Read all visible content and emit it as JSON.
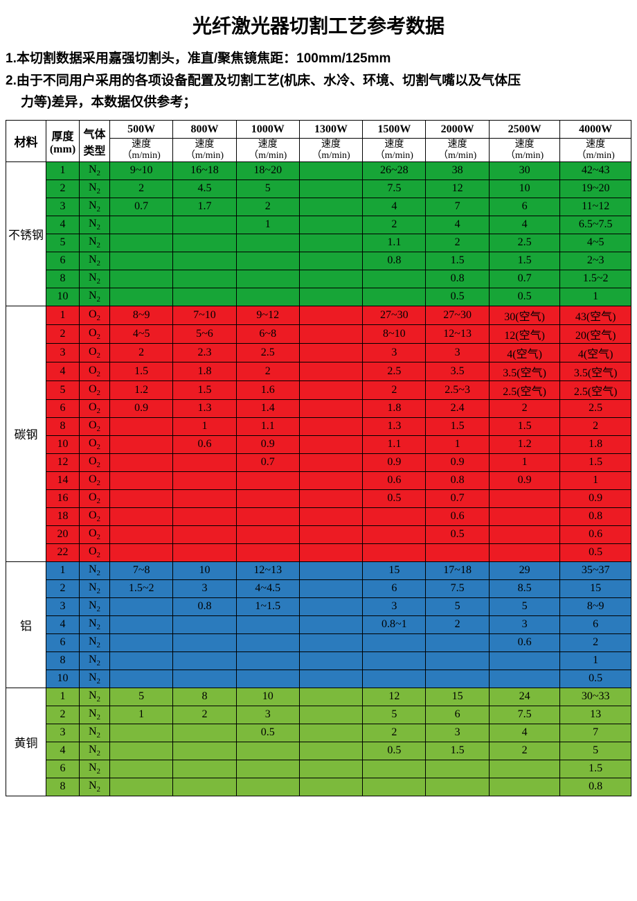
{
  "title": "光纤激光器切割工艺参考数据",
  "note1": "1.本切割数据采用嘉强切割头，准直/聚焦镜焦距：100mm/125mm",
  "note2a": "2.由于不同用户采用的各项设备配置及切割工艺(机床、水冷、环境、切割气嘴以及气体压",
  "note2b": "力等)差异，本数据仅供参考；",
  "headers": {
    "material": "材料",
    "thickness": "厚度\n(mm)",
    "gas": "气体\n类型",
    "powers": [
      "500W",
      "800W",
      "1000W",
      "1300W",
      "1500W",
      "2000W",
      "2500W",
      "4000W"
    ],
    "speed_line1": "速度",
    "speed_line2": "（m/min)"
  },
  "colors": {
    "stainless": "#17a537",
    "carbon": "#ed1b23",
    "aluminum": "#2b7bbd",
    "brass": "#7cba3c",
    "border": "#000000"
  },
  "groups": [
    {
      "name": "不锈钢",
      "bg": "#17a537",
      "matbg": "#ffffff",
      "rows": [
        {
          "t": "1",
          "g": "N2",
          "v": [
            "9~10",
            "16~18",
            "18~20",
            "",
            "26~28",
            "38",
            "30",
            "42~43"
          ]
        },
        {
          "t": "2",
          "g": "N2",
          "v": [
            "2",
            "4.5",
            "5",
            "",
            "7.5",
            "12",
            "10",
            "19~20"
          ]
        },
        {
          "t": "3",
          "g": "N2",
          "v": [
            "0.7",
            "1.7",
            "2",
            "",
            "4",
            "7",
            "6",
            "11~12"
          ]
        },
        {
          "t": "4",
          "g": "N2",
          "v": [
            "",
            "",
            "1",
            "",
            "2",
            "4",
            "4",
            "6.5~7.5"
          ]
        },
        {
          "t": "5",
          "g": "N2",
          "v": [
            "",
            "",
            "",
            "",
            "1.1",
            "2",
            "2.5",
            "4~5"
          ]
        },
        {
          "t": "6",
          "g": "N2",
          "v": [
            "",
            "",
            "",
            "",
            "0.8",
            "1.5",
            "1.5",
            "2~3"
          ]
        },
        {
          "t": "8",
          "g": "N2",
          "v": [
            "",
            "",
            "",
            "",
            "",
            "0.8",
            "0.7",
            "1.5~2"
          ]
        },
        {
          "t": "10",
          "g": "N2",
          "v": [
            "",
            "",
            "",
            "",
            "",
            "0.5",
            "0.5",
            "1"
          ]
        }
      ]
    },
    {
      "name": "碳钢",
      "bg": "#ed1b23",
      "matbg": "#ffffff",
      "rows": [
        {
          "t": "1",
          "g": "O2",
          "v": [
            "8~9",
            "7~10",
            "9~12",
            "",
            "27~30",
            "27~30",
            "30(空气)",
            "43(空气)"
          ]
        },
        {
          "t": "2",
          "g": "O2",
          "v": [
            "4~5",
            "5~6",
            "6~8",
            "",
            "8~10",
            "12~13",
            "12(空气)",
            "20(空气)"
          ]
        },
        {
          "t": "3",
          "g": "O2",
          "v": [
            "2",
            "2.3",
            "2.5",
            "",
            "3",
            "3",
            "4(空气)",
            "4(空气)"
          ]
        },
        {
          "t": "4",
          "g": "O2",
          "v": [
            "1.5",
            "1.8",
            "2",
            "",
            "2.5",
            "3.5",
            "3.5(空气)",
            "3.5(空气)"
          ]
        },
        {
          "t": "5",
          "g": "O2",
          "v": [
            "1.2",
            "1.5",
            "1.6",
            "",
            "2",
            "2.5~3",
            "2.5(空气)",
            "2.5(空气)"
          ]
        },
        {
          "t": "6",
          "g": "O2",
          "v": [
            "0.9",
            "1.3",
            "1.4",
            "",
            "1.8",
            "2.4",
            "2",
            "2.5"
          ]
        },
        {
          "t": "8",
          "g": "O2",
          "v": [
            "",
            "1",
            "1.1",
            "",
            "1.3",
            "1.5",
            "1.5",
            "2"
          ]
        },
        {
          "t": "10",
          "g": "O2",
          "v": [
            "",
            "0.6",
            "0.9",
            "",
            "1.1",
            "1",
            "1.2",
            "1.8"
          ]
        },
        {
          "t": "12",
          "g": "O2",
          "v": [
            "",
            "",
            "0.7",
            "",
            "0.9",
            "0.9",
            "1",
            "1.5"
          ]
        },
        {
          "t": "14",
          "g": "O2",
          "v": [
            "",
            "",
            "",
            "",
            "0.6",
            "0.8",
            "0.9",
            "1"
          ]
        },
        {
          "t": "16",
          "g": "O2",
          "v": [
            "",
            "",
            "",
            "",
            "0.5",
            "0.7",
            "",
            "0.9"
          ]
        },
        {
          "t": "18",
          "g": "O2",
          "v": [
            "",
            "",
            "",
            "",
            "",
            "0.6",
            "",
            "0.8"
          ]
        },
        {
          "t": "20",
          "g": "O2",
          "v": [
            "",
            "",
            "",
            "",
            "",
            "0.5",
            "",
            "0.6"
          ]
        },
        {
          "t": "22",
          "g": "O2",
          "v": [
            "",
            "",
            "",
            "",
            "",
            "",
            "",
            "0.5"
          ]
        }
      ]
    },
    {
      "name": "铝",
      "bg": "#2b7bbd",
      "matbg": "#ffffff",
      "rows": [
        {
          "t": "1",
          "g": "N2",
          "v": [
            "7~8",
            "10",
            "12~13",
            "",
            "15",
            "17~18",
            "29",
            "35~37"
          ]
        },
        {
          "t": "2",
          "g": "N2",
          "v": [
            "1.5~2",
            "3",
            "4~4.5",
            "",
            "6",
            "7.5",
            "8.5",
            "15"
          ]
        },
        {
          "t": "3",
          "g": "N2",
          "v": [
            "",
            "0.8",
            "1~1.5",
            "",
            "3",
            "5",
            "5",
            "8~9"
          ]
        },
        {
          "t": "4",
          "g": "N2",
          "v": [
            "",
            "",
            "",
            "",
            "0.8~1",
            "2",
            "3",
            "6"
          ]
        },
        {
          "t": "6",
          "g": "N2",
          "v": [
            "",
            "",
            "",
            "",
            "",
            "",
            "0.6",
            "2"
          ]
        },
        {
          "t": "8",
          "g": "N2",
          "v": [
            "",
            "",
            "",
            "",
            "",
            "",
            "",
            "1"
          ]
        },
        {
          "t": "10",
          "g": "N2",
          "v": [
            "",
            "",
            "",
            "",
            "",
            "",
            "",
            "0.5"
          ]
        }
      ]
    },
    {
      "name": "黄铜",
      "bg": "#7cba3c",
      "matbg": "#ffffff",
      "rows": [
        {
          "t": "1",
          "g": "N2",
          "v": [
            "5",
            "8",
            "10",
            "",
            "12",
            "15",
            "24",
            "30~33"
          ]
        },
        {
          "t": "2",
          "g": "N2",
          "v": [
            "1",
            "2",
            "3",
            "",
            "5",
            "6",
            "7.5",
            "13"
          ]
        },
        {
          "t": "3",
          "g": "N2",
          "v": [
            "",
            "",
            "0.5",
            "",
            "2",
            "3",
            "4",
            "7"
          ]
        },
        {
          "t": "4",
          "g": "N2",
          "v": [
            "",
            "",
            "",
            "",
            "0.5",
            "1.5",
            "2",
            "5"
          ]
        },
        {
          "t": "6",
          "g": "N2",
          "v": [
            "",
            "",
            "",
            "",
            "",
            "",
            "",
            "1.5"
          ]
        },
        {
          "t": "8",
          "g": "N2",
          "v": [
            "",
            "",
            "",
            "",
            "",
            "",
            "",
            "0.8"
          ]
        }
      ]
    }
  ]
}
